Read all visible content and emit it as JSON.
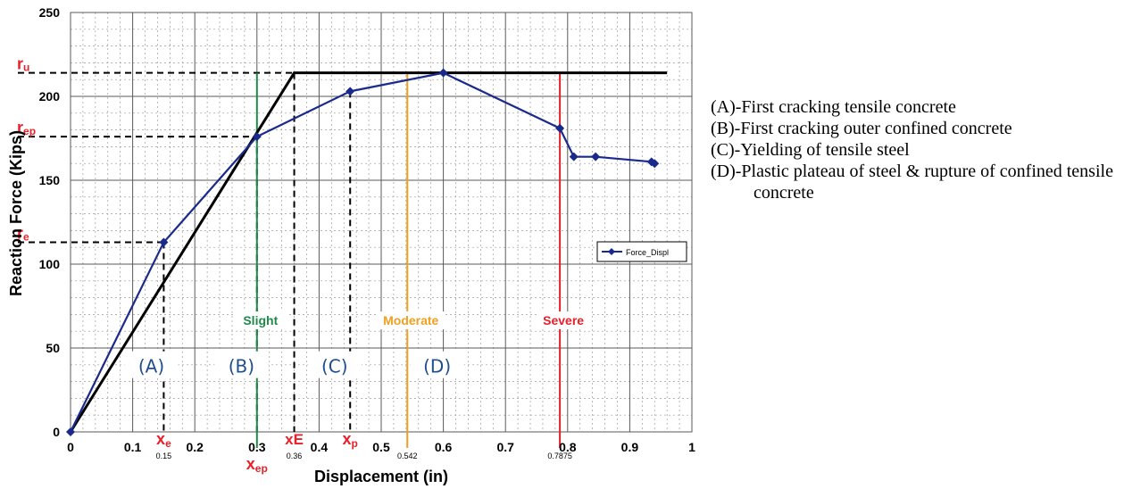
{
  "chart_data": {
    "type": "line",
    "xlabel": "Displacement (in)",
    "ylabel": "Reaction Force  (Kips)",
    "xlim": [
      0,
      1
    ],
    "ylim": [
      0,
      250
    ],
    "x_ticks": [
      "0",
      "0.1",
      "0.2",
      "0.3",
      "0.4",
      "0.5",
      "0.6",
      "0.7",
      "0.8",
      "0.9",
      "1"
    ],
    "y_ticks": [
      "0",
      "50",
      "100",
      "150",
      "200",
      "250"
    ],
    "grid": true,
    "legend_position": "right",
    "series": [
      {
        "name": "Force_Displ",
        "color": "#1a2a8c",
        "x": [
          0,
          0.15,
          0.3,
          0.45,
          0.6,
          0.7875,
          0.81,
          0.845,
          0.935,
          0.94
        ],
        "y": [
          0,
          113,
          176,
          203,
          214,
          181,
          164,
          164,
          161,
          160
        ]
      }
    ],
    "bilinear": {
      "color": "#000000",
      "x": [
        0,
        0.36,
        0.96
      ],
      "y": [
        0,
        214,
        214
      ]
    },
    "damage_states": [
      {
        "label": "Slight",
        "x": 0.3,
        "color": "#1e8a4a"
      },
      {
        "label": "Moderate",
        "x": 0.542,
        "color": "#f0a020"
      },
      {
        "label": "Severe",
        "x": 0.7875,
        "color": "#e8202a"
      }
    ],
    "guides": [
      {
        "x": 0.15,
        "y": 113
      },
      {
        "x": 0.3,
        "y": 176
      },
      {
        "x": 0.36,
        "y": 214
      },
      {
        "x": 0.45,
        "y": 203
      }
    ],
    "x_markers": [
      {
        "label": "xe",
        "main": "x",
        "sub": "e",
        "value_label": "0.15",
        "x": 0.15
      },
      {
        "label": "xep",
        "main": "x",
        "sub": "ep",
        "value_label": "",
        "x": 0.3
      },
      {
        "label": "xE",
        "main": "xE",
        "sub": "",
        "value_label": "0.36",
        "x": 0.36
      },
      {
        "label": "xp",
        "main": "x",
        "sub": "p",
        "value_label": "",
        "x": 0.45
      },
      {
        "label": "0.542",
        "main": "",
        "sub": "",
        "value_label": "0.542",
        "x": 0.542
      },
      {
        "label": "0.7875",
        "main": "",
        "sub": "",
        "value_label": "0.7875",
        "x": 0.7875
      }
    ],
    "y_markers": [
      {
        "main": "r",
        "sub": "u",
        "y": 214
      },
      {
        "main": "r",
        "sub": "ep",
        "y": 176
      },
      {
        "main": "r",
        "sub": "e",
        "y": 113
      }
    ],
    "region_labels": [
      {
        "text": "(A)",
        "x": 0.13
      },
      {
        "text": "(B)",
        "x": 0.275
      },
      {
        "text": "(C)",
        "x": 0.425
      },
      {
        "text": "(D)",
        "x": 0.59
      }
    ],
    "marker_color": "#e8202a",
    "region_color": "#1f4e8c"
  },
  "notes": [
    "(A)-First cracking tensile concrete",
    "(B)-First cracking outer confined concrete",
    "(C)-Yielding of tensile steel",
    "(D)-Plastic plateau of steel & rupture of confined tensile concrete"
  ]
}
